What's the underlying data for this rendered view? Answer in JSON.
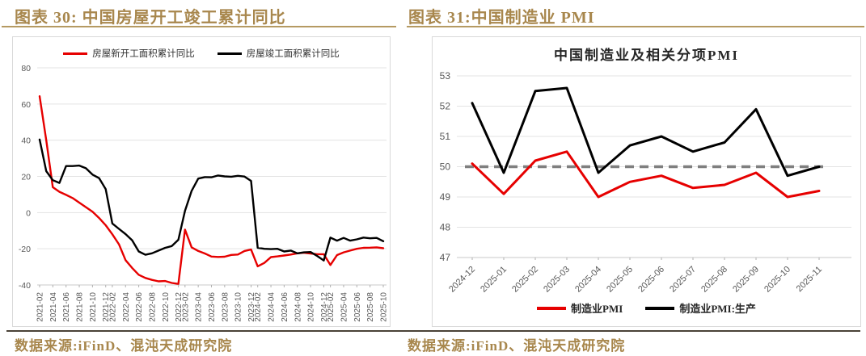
{
  "figures": [
    {
      "title": "图表 30: 中国房屋开工竣工累计同比",
      "source": "数据来源:iFinD、混沌天成研究院"
    },
    {
      "title": "图表 31:中国制造业 PMI",
      "source": "数据来源:iFinD、混沌天成研究院"
    }
  ],
  "colors": {
    "accent_gold": "#a8874d",
    "rule_dark": "#4a4237",
    "series_red": "#e60000",
    "series_black": "#000000",
    "grid": "#e3e3e3",
    "axis_label": "#595959",
    "reference_gray": "#7f7f7f"
  },
  "chart_data": [
    {
      "type": "line",
      "title": "",
      "legend_position": "top",
      "grid": true,
      "ylim": [
        -40,
        80
      ],
      "yticks": [
        80,
        60,
        40,
        20,
        0,
        -20,
        -40
      ],
      "categories": [
        "2021-02",
        "2021-03",
        "2021-04",
        "2021-05",
        "2021-06",
        "2021-07",
        "2021-08",
        "2021-09",
        "2021-10",
        "2021-11",
        "2021-12",
        "2022-02",
        "2022-03",
        "2022-04",
        "2022-05",
        "2022-06",
        "2022-07",
        "2022-08",
        "2022-09",
        "2022-10",
        "2022-11",
        "2022-12",
        "2023-02",
        "2023-03",
        "2023-04",
        "2023-05",
        "2023-06",
        "2023-07",
        "2023-08",
        "2023-09",
        "2023-10",
        "2023-11",
        "2023-12",
        "2024-02",
        "2024-03",
        "2024-04",
        "2024-05",
        "2024-06",
        "2024-07",
        "2024-08",
        "2024-09",
        "2024-10",
        "2024-11",
        "2024-12",
        "2025-02",
        "2025-03",
        "2025-04",
        "2025-05",
        "2025-06",
        "2025-07",
        "2025-08",
        "2025-09",
        "2025-10"
      ],
      "x_tick_indices": [
        0,
        2,
        4,
        6,
        8,
        10,
        11,
        13,
        15,
        17,
        19,
        21,
        22,
        24,
        26,
        28,
        30,
        32,
        33,
        35,
        37,
        39,
        41,
        43,
        44,
        46,
        48,
        50,
        52
      ],
      "series": [
        {
          "name": "房屋新开工面积累计同比",
          "color": "#e60000",
          "values": [
            64.3,
            40,
            14,
            11.5,
            9.8,
            8,
            5.5,
            3,
            0.5,
            -3,
            -7,
            -12,
            -17.5,
            -26.3,
            -30.6,
            -34.4,
            -36.1,
            -37.2,
            -38,
            -37.8,
            -38.9,
            -39.4,
            -9.4,
            -19.2,
            -21.2,
            -22.6,
            -24.3,
            -24.5,
            -24.4,
            -23.4,
            -23.2,
            -21.2,
            -20.4,
            -29.7,
            -27.8,
            -24.6,
            -24.2,
            -23.7,
            -23.2,
            -22.5,
            -22.2,
            -22.6,
            -23,
            -23,
            -29,
            -23.5,
            -22,
            -21,
            -20,
            -19.5,
            -19.4,
            -19.2,
            -19.7
          ]
        },
        {
          "name": "房屋竣工面积累计同比",
          "color": "#000000",
          "values": [
            40.4,
            22.9,
            17.9,
            16.4,
            25.7,
            25.7,
            26,
            24.5,
            21,
            19,
            13,
            -6,
            -9,
            -11.9,
            -15.3,
            -21.5,
            -23.3,
            -22.5,
            -21,
            -19.5,
            -18.5,
            -15,
            1,
            12,
            18.8,
            19.6,
            19.5,
            20.5,
            20,
            19.8,
            20.3,
            19.9,
            17.5,
            -19.5,
            -20,
            -20.2,
            -20,
            -21.5,
            -21,
            -22.5,
            -22,
            -21.8,
            -24,
            -26.5,
            -13.8,
            -15.5,
            -14,
            -15.5,
            -14.8,
            -13.8,
            -14.2,
            -14,
            -15.8
          ]
        }
      ]
    },
    {
      "type": "line",
      "title": "中国制造业及相关分项PMI",
      "legend_position": "bottom",
      "grid": true,
      "ylim": [
        47,
        53
      ],
      "yticks": [
        53,
        52,
        51,
        50,
        49,
        48,
        47
      ],
      "reference_line": {
        "value": 50,
        "style": "dashed",
        "color": "#7f7f7f"
      },
      "categories": [
        "2024-12",
        "2025-01",
        "2025-02",
        "2025-03",
        "2025-04",
        "2025-05",
        "2025-06",
        "2025-07",
        "2025-08",
        "2025-09",
        "2025-10",
        "2025-11"
      ],
      "series": [
        {
          "name": "制造业PMI",
          "color": "#e60000",
          "values": [
            50.1,
            49.1,
            50.2,
            50.5,
            49.0,
            49.5,
            49.7,
            49.3,
            49.4,
            49.8,
            49.0,
            49.2
          ]
        },
        {
          "name": "制造业PMI:生产",
          "color": "#000000",
          "values": [
            52.1,
            49.8,
            52.5,
            52.6,
            49.8,
            50.7,
            51.0,
            50.5,
            50.8,
            51.9,
            49.7,
            50.0
          ]
        }
      ]
    }
  ]
}
